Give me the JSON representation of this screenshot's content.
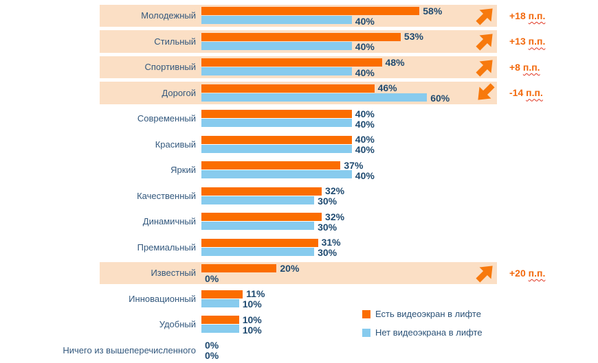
{
  "chart_data": {
    "type": "bar",
    "orientation": "horizontal",
    "title": "",
    "xlabel": "",
    "ylabel": "",
    "xlim": [
      0,
      60
    ],
    "grid": false,
    "value_suffix": "%",
    "delta_suffix": "п.п.",
    "series": [
      {
        "name": "Есть видеоэкран в лифте",
        "color": "#FB6D00",
        "values": [
          58,
          53,
          48,
          46,
          40,
          40,
          37,
          32,
          32,
          31,
          20,
          11,
          10,
          0
        ]
      },
      {
        "name": "Нет видеоэкрана в лифте",
        "color": "#87CBEE",
        "values": [
          40,
          40,
          40,
          60,
          40,
          40,
          40,
          30,
          30,
          30,
          0,
          10,
          10,
          0
        ]
      }
    ],
    "categories": [
      "Молодежный",
      "Стильный",
      "Спортивный",
      "Дорогой",
      "Современный",
      "Красивый",
      "Яркий",
      "Качественный",
      "Динамичный",
      "Премиальный",
      "Известный",
      "Инновационный",
      "Удобный",
      "Ничего из вышеперечисленного"
    ],
    "rows": [
      {
        "label": "Молодежный",
        "with_value": 58,
        "with_text": "58%",
        "without_value": 40,
        "without_text": "40%",
        "delta_text": "+18",
        "direction": "up",
        "highlighted": true
      },
      {
        "label": "Стильный",
        "with_value": 53,
        "with_text": "53%",
        "without_value": 40,
        "without_text": "40%",
        "delta_text": "+13",
        "direction": "up",
        "highlighted": true
      },
      {
        "label": "Спортивный",
        "with_value": 48,
        "with_text": "48%",
        "without_value": 40,
        "without_text": "40%",
        "delta_text": "+8",
        "direction": "up",
        "highlighted": true
      },
      {
        "label": "Дорогой",
        "with_value": 46,
        "with_text": "46%",
        "without_value": 60,
        "without_text": "60%",
        "delta_text": "-14",
        "direction": "down",
        "highlighted": true
      },
      {
        "label": "Современный",
        "with_value": 40,
        "with_text": "40%",
        "without_value": 40,
        "without_text": "40%",
        "delta_text": null,
        "direction": null,
        "highlighted": false
      },
      {
        "label": "Красивый",
        "with_value": 40,
        "with_text": "40%",
        "without_value": 40,
        "without_text": "40%",
        "delta_text": null,
        "direction": null,
        "highlighted": false
      },
      {
        "label": "Яркий",
        "with_value": 37,
        "with_text": "37%",
        "without_value": 40,
        "without_text": "40%",
        "delta_text": null,
        "direction": null,
        "highlighted": false
      },
      {
        "label": "Качественный",
        "with_value": 32,
        "with_text": "32%",
        "without_value": 30,
        "without_text": "30%",
        "delta_text": null,
        "direction": null,
        "highlighted": false
      },
      {
        "label": "Динамичный",
        "with_value": 32,
        "with_text": "32%",
        "without_value": 30,
        "without_text": "30%",
        "delta_text": null,
        "direction": null,
        "highlighted": false
      },
      {
        "label": "Премиальный",
        "with_value": 31,
        "with_text": "31%",
        "without_value": 30,
        "without_text": "30%",
        "delta_text": null,
        "direction": null,
        "highlighted": false
      },
      {
        "label": "Известный",
        "with_value": 20,
        "with_text": "20%",
        "without_value": 0,
        "without_text": "0%",
        "delta_text": "+20",
        "direction": "up",
        "highlighted": true
      },
      {
        "label": "Инновационный",
        "with_value": 11,
        "with_text": "11%",
        "without_value": 10,
        "without_text": "10%",
        "delta_text": null,
        "direction": null,
        "highlighted": false
      },
      {
        "label": "Удобный",
        "with_value": 10,
        "with_text": "10%",
        "without_value": 10,
        "without_text": "10%",
        "delta_text": null,
        "direction": null,
        "highlighted": false
      },
      {
        "label": "Ничего из вышеперечисленного",
        "with_value": 0,
        "with_text": "0%",
        "without_value": 0,
        "without_text": "0%",
        "delta_text": null,
        "direction": null,
        "highlighted": false
      }
    ],
    "colors": {
      "with_screen_bar": "#FB6D00",
      "without_screen_bar": "#87CBEE",
      "highlight_band": "#FBDFC5",
      "label_text": "#33587D",
      "value_text": "#1F4A70",
      "delta_text": "#F2690D",
      "arrow": "#F7790D"
    },
    "legend_position": "bottom-right-inside"
  },
  "legend": {
    "items": [
      {
        "label": "Есть видеоэкран в лифте",
        "color": "#FB6D00"
      },
      {
        "label": "Нет видеоэкрана в лифте",
        "color": "#87CBEE"
      }
    ]
  }
}
